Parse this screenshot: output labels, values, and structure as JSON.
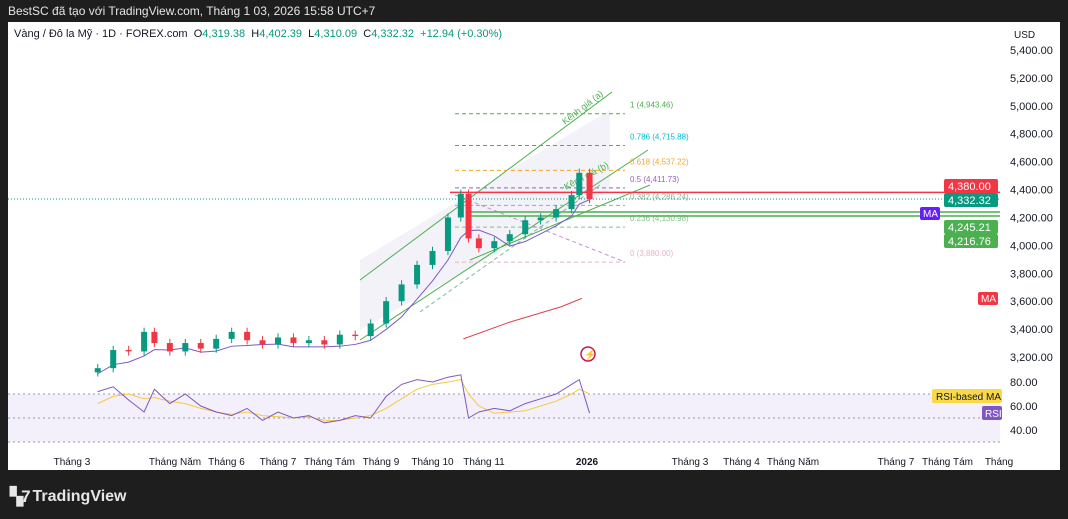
{
  "header": {
    "attribution": "BestSC đã tạo với TradingView.com, Tháng 1 03, 2026 15:58 UTC+7"
  },
  "legend": {
    "symbol": "Vàng / Đô la Mỹ · 1D · FOREX.com",
    "o_label": "O",
    "o": "4,319.38",
    "h_label": "H",
    "h": "4,402.39",
    "l_label": "L",
    "l": "4,310.09",
    "c_label": "C",
    "c": "4,332.32",
    "change": "+12.94 (+0.30%)"
  },
  "currency": "USD",
  "footer": {
    "brand": "TradingView"
  },
  "colors": {
    "up": "#089981",
    "down": "#f23645",
    "ma_long": "#e04050",
    "ma_short": "#7e57c2",
    "rsi": "#7e57c2",
    "rsi_ma": "#f5c842",
    "channel": "#4caf50"
  },
  "annotations": {
    "channel_a": "Kênh giá (a)",
    "channel_b": "Kênh giá (b)",
    "fib": [
      {
        "label": "1 (4,943.46)",
        "price": 4943.46,
        "color": "#4caf50"
      },
      {
        "label": "0.786 (4,715.88)",
        "price": 4715.88,
        "color": "#00bcd4"
      },
      {
        "label": "0.618 (4,537.22)",
        "price": 4537.22,
        "color": "#f5a623"
      },
      {
        "label": "0.5 (4,411.73)",
        "price": 4411.73,
        "color": "#9c5fc6"
      },
      {
        "label": "0.382 (4,286.24)",
        "price": 4286.24,
        "color": "#8fb39a"
      },
      {
        "label": "0.236 (4,130.98)",
        "price": 4130.98,
        "color": "#7fc08a"
      },
      {
        "label": "0 (3,880.00)",
        "price": 3880.0,
        "color": "#e8b4c0"
      }
    ]
  },
  "price_labels": [
    {
      "text": "4,380.00",
      "price": 4380,
      "color": "#f23645"
    },
    {
      "text": "4,332.32",
      "price": 4332.32,
      "color": "#089981"
    },
    {
      "text": "4,245.21",
      "price": 4245.21,
      "color": "#4caf50"
    },
    {
      "text": "4,216.76",
      "price": 4216.76,
      "color": "#4caf50"
    }
  ],
  "indicator_tags": {
    "ma_short": "MA",
    "ma_long": "MA",
    "rsi_ma": "RSI-based MA",
    "rsi": "RSI"
  },
  "chart_data": {
    "type": "candlestick",
    "symbol": "XAUUSD",
    "interval": "1D",
    "y_axis": {
      "ticks": [
        5400,
        5200,
        5000,
        4800,
        4600,
        4400,
        4200,
        4000,
        3800,
        3600,
        3400,
        3200
      ],
      "tick_labels": [
        "5,400.00",
        "5,200.00",
        "5,000.00",
        "4,800.00",
        "4,600.00",
        "4,400.00",
        "4,200.00",
        "4,000.00",
        "3,800.00",
        "3,600.00",
        "3,400.00",
        "3,200.00"
      ]
    },
    "x_axis": {
      "tick_labels": [
        "Tháng 3",
        "Tháng Năm",
        "Tháng 6",
        "Tháng 7",
        "Tháng Tám",
        "Tháng 9",
        "Tháng 10",
        "Tháng 11",
        "2026",
        "Tháng 3",
        "Tháng 4",
        "Tháng Năm",
        "Tháng 7",
        "Tháng Tám",
        "Tháng"
      ],
      "tick_months": [
        3,
        5,
        6,
        7,
        8,
        9,
        10,
        11,
        13,
        15,
        16,
        17,
        19,
        20,
        21
      ]
    },
    "x_month": [
      3.5,
      3.8,
      4.1,
      4.4,
      4.6,
      4.9,
      5.2,
      5.5,
      5.8,
      6.1,
      6.4,
      6.7,
      7.0,
      7.3,
      7.6,
      7.9,
      8.2,
      8.5,
      8.8,
      9.1,
      9.4,
      9.7,
      10.0,
      10.3,
      10.55,
      10.7,
      10.9,
      11.2,
      11.5,
      11.8,
      12.1,
      12.4,
      12.7,
      12.85,
      13.05
    ],
    "close": [
      3120,
      3250,
      3240,
      3380,
      3300,
      3240,
      3300,
      3260,
      3330,
      3380,
      3320,
      3290,
      3340,
      3300,
      3320,
      3290,
      3360,
      3350,
      3440,
      3600,
      3720,
      3860,
      3960,
      4200,
      4370,
      4050,
      3980,
      4030,
      4080,
      4180,
      4200,
      4260,
      4360,
      4520,
      4332
    ],
    "rsi": [
      72,
      76,
      65,
      55,
      74,
      62,
      70,
      60,
      55,
      52,
      58,
      48,
      55,
      50,
      52,
      46,
      48,
      52,
      50,
      68,
      78,
      82,
      80,
      84,
      86,
      50,
      55,
      58,
      56,
      62,
      66,
      70,
      78,
      82,
      54
    ],
    "rsi_ma": [
      62,
      68,
      70,
      66,
      67,
      64,
      62,
      58,
      55,
      53,
      55,
      52,
      51,
      50,
      51,
      48,
      48,
      50,
      52,
      58,
      66,
      74,
      78,
      80,
      82,
      70,
      60,
      54,
      55,
      56,
      60,
      64,
      70,
      74,
      70
    ],
    "ma_long": [
      [
        10.6,
        3330
      ],
      [
        11.5,
        3450
      ],
      [
        12.5,
        3560
      ],
      [
        12.9,
        3620
      ]
    ],
    "rsi_axis": {
      "ticks": [
        80,
        60,
        40
      ],
      "tick_labels": [
        "80.00",
        "60.00",
        "40.00"
      ],
      "bands": [
        70,
        50,
        30
      ]
    }
  }
}
